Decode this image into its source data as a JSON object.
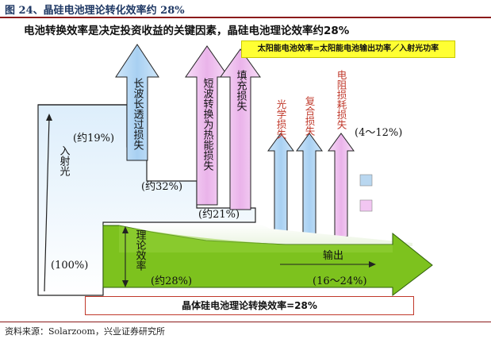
{
  "figure": {
    "title": "图 24、晶硅电池理论转化效率约 28%",
    "source": "资料来源：Solarzoom，兴业证券研究所"
  },
  "headline": "电池转换效率是决定投资收益的关键因素，晶硅电池理论效率约28%",
  "formula": "太阳能电池效率=太阳能电池输出功率／入射光功率",
  "bottom_box": "晶体硅电池理论转换效率=28%",
  "input": {
    "label": "入射光",
    "percent": "(100%)"
  },
  "losses": {
    "long_wave": {
      "label": "长波长透过损失",
      "percent": "(约19%)"
    },
    "short_wave": {
      "label": "短波转换为热能损失",
      "percent": "(约32%)"
    },
    "fill": {
      "label": "填充损失",
      "percent": "(约21%)"
    },
    "optical": {
      "label": "光学损失"
    },
    "recombination": {
      "label": "复合损失"
    },
    "resistance": {
      "label": "电阻损耗损失"
    },
    "small_losses_percent": "(4～12%)"
  },
  "theoretical": {
    "label": "理论效率",
    "percent": "(约28%)"
  },
  "output": {
    "label": "输出",
    "percent": "(16～24%)"
  },
  "legend": [
    {
      "color": "#b9d7f0"
    },
    {
      "color": "#f2c6f2"
    }
  ],
  "colors": {
    "blue_arrow": "#aed4f3",
    "pink_arrow": "#f0c2f0",
    "green_arrow": "#7dc21e",
    "loss_text": "#c0392b"
  }
}
